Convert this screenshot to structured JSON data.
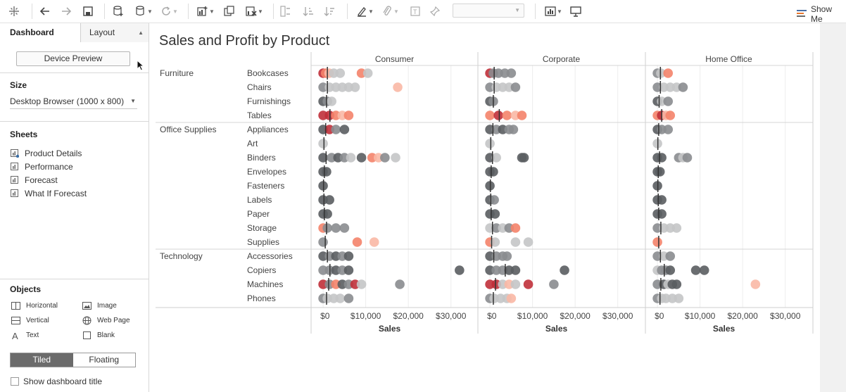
{
  "toolbar": {
    "items": [
      {
        "name": "tableau-logo-icon",
        "x": 20
      },
      {
        "name": "undo-icon",
        "x": 64
      },
      {
        "name": "redo-icon",
        "x": 94,
        "dim": true
      },
      {
        "name": "save-icon",
        "x": 125
      },
      {
        "name": "new-datasource-icon",
        "x": 168
      },
      {
        "name": "pause-updates-icon",
        "x": 200,
        "caret": true
      },
      {
        "name": "refresh-icon",
        "x": 236,
        "dim": true,
        "caret": true
      },
      {
        "name": "new-worksheet-icon",
        "x": 288,
        "caret": true
      },
      {
        "name": "duplicate-sheet-icon",
        "x": 326
      },
      {
        "name": "clear-sheet-icon",
        "x": 357,
        "caret": true
      },
      {
        "name": "swap-icon",
        "x": 406,
        "dim": true
      },
      {
        "name": "sort-ascending-icon",
        "x": 438,
        "dim": true
      },
      {
        "name": "sort-descending-icon",
        "x": 468,
        "dim": true
      },
      {
        "name": "highlight-icon",
        "x": 514,
        "caret": true
      },
      {
        "name": "group-icon",
        "x": 550,
        "dim": true,
        "caret": true
      },
      {
        "name": "label-icon",
        "x": 590,
        "dim": true
      },
      {
        "name": "pin-icon",
        "x": 618,
        "dim": true
      },
      {
        "name": "fit-icon",
        "x": 782,
        "caret": true
      },
      {
        "name": "presentation-icon",
        "x": 818
      }
    ],
    "show_me_label": "Show Me"
  },
  "left_pane": {
    "tabs": {
      "dashboard": "Dashboard",
      "layout": "Layout"
    },
    "device_preview_label": "Device Preview",
    "size_heading": "Size",
    "size_value": "Desktop Browser (1000 x 800)",
    "sheets_heading": "Sheets",
    "sheets": [
      {
        "label": "Product Details",
        "icon": "sheet-used-icon"
      },
      {
        "label": "Performance",
        "icon": "sheet-icon"
      },
      {
        "label": "Forecast",
        "icon": "sheet-icon"
      },
      {
        "label": "What If Forecast",
        "icon": "sheet-icon"
      }
    ],
    "objects_heading": "Objects",
    "objects": [
      {
        "label": "Horizontal",
        "icon": "horizontal-container-icon"
      },
      {
        "label": "Image",
        "icon": "image-icon"
      },
      {
        "label": "Vertical",
        "icon": "vertical-container-icon"
      },
      {
        "label": "Web Page",
        "icon": "web-page-icon"
      },
      {
        "label": "Text",
        "icon": "text-icon"
      },
      {
        "label": "Blank",
        "icon": "blank-icon"
      }
    ],
    "tiled_label": "Tiled",
    "floating_label": "Floating",
    "show_title_label": "Show dashboard title"
  },
  "viz": {
    "title": "Sales and Profit by Product",
    "colors": {
      "red": "#c0303a",
      "salmon": "#f4836a",
      "pink": "#f9b8a5",
      "dark": "#5a5d61",
      "mid": "#8a8c8f",
      "light": "#c4c5c6",
      "refline": "#333333"
    }
  },
  "chart_data": {
    "type": "scatter",
    "title": "Sales and Profit by Product",
    "xlabel": "Sales",
    "xlim": [
      -1500,
      35000
    ],
    "x_ticks": [
      "$0",
      "$10,000",
      "$20,000",
      "$30,000"
    ],
    "x_tick_values": [
      0,
      10000,
      20000,
      30000
    ],
    "segments": [
      "Consumer",
      "Corporate",
      "Home Office"
    ],
    "categories": [
      {
        "name": "Furniture",
        "subs": [
          "Bookcases",
          "Chairs",
          "Furnishings",
          "Tables"
        ]
      },
      {
        "name": "Office Supplies",
        "subs": [
          "Appliances",
          "Art",
          "Binders",
          "Envelopes",
          "Fasteners",
          "Labels",
          "Paper",
          "Storage",
          "Supplies"
        ]
      },
      {
        "name": "Technology",
        "subs": [
          "Accessories",
          "Copiers",
          "Machines",
          "Phones"
        ]
      }
    ],
    "reference_lines": {
      "Consumer": [
        1000,
        1000,
        800,
        1600,
        600,
        200,
        700,
        300,
        100,
        200,
        300,
        800,
        500,
        1000,
        1600,
        1300,
        800
      ],
      "Corporate": [
        1000,
        1000,
        800,
        2200,
        700,
        200,
        600,
        300,
        100,
        200,
        300,
        600,
        400,
        900,
        3600,
        1300,
        800
      ],
      "Home Office": [
        700,
        700,
        400,
        1000,
        300,
        100,
        500,
        200,
        100,
        200,
        300,
        800,
        300,
        700,
        1600,
        800,
        600
      ]
    },
    "points": {
      "Consumer": [
        [
          [
            0,
            "red"
          ],
          [
            600,
            "salmon"
          ],
          [
            1400,
            "pink"
          ],
          [
            2500,
            "light"
          ],
          [
            4000,
            "light"
          ],
          [
            9000,
            "salmon"
          ],
          [
            10500,
            "light"
          ]
        ],
        [
          [
            0,
            "mid"
          ],
          [
            1500,
            "light"
          ],
          [
            3000,
            "light"
          ],
          [
            4500,
            "light"
          ],
          [
            6000,
            "light"
          ],
          [
            7500,
            "light"
          ],
          [
            17500,
            "pink"
          ]
        ],
        [
          [
            0,
            "dark"
          ],
          [
            1000,
            "mid"
          ],
          [
            2000,
            "light"
          ]
        ],
        [
          [
            0,
            "red"
          ],
          [
            1500,
            "red"
          ],
          [
            3000,
            "salmon"
          ],
          [
            4500,
            "pink"
          ],
          [
            6000,
            "salmon"
          ]
        ],
        [
          [
            0,
            "dark"
          ],
          [
            1500,
            "red"
          ],
          [
            3000,
            "mid"
          ],
          [
            5000,
            "dark"
          ]
        ],
        [
          [
            0,
            "light"
          ]
        ],
        [
          [
            0,
            "dark"
          ],
          [
            2000,
            "mid"
          ],
          [
            3500,
            "dark"
          ],
          [
            5000,
            "mid"
          ],
          [
            6500,
            "light"
          ],
          [
            9000,
            "dark"
          ],
          [
            11500,
            "salmon"
          ],
          [
            13000,
            "pink"
          ],
          [
            14500,
            "mid"
          ],
          [
            17000,
            "light"
          ]
        ],
        [
          [
            0,
            "dark"
          ],
          [
            800,
            "dark"
          ]
        ],
        [
          [
            0,
            "dark"
          ]
        ],
        [
          [
            0,
            "dark"
          ],
          [
            1500,
            "dark"
          ]
        ],
        [
          [
            0,
            "dark"
          ],
          [
            1000,
            "dark"
          ]
        ],
        [
          [
            0,
            "salmon"
          ],
          [
            1000,
            "mid"
          ],
          [
            3000,
            "mid"
          ],
          [
            5000,
            "mid"
          ]
        ],
        [
          [
            0,
            "mid"
          ],
          [
            8000,
            "salmon"
          ],
          [
            12000,
            "pink"
          ]
        ],
        [
          [
            0,
            "dark"
          ],
          [
            1500,
            "mid"
          ],
          [
            3000,
            "dark"
          ],
          [
            4500,
            "mid"
          ],
          [
            6000,
            "dark"
          ]
        ],
        [
          [
            0,
            "mid"
          ],
          [
            1500,
            "mid"
          ],
          [
            3000,
            "dark"
          ],
          [
            4500,
            "mid"
          ],
          [
            6000,
            "dark"
          ],
          [
            32000,
            "dark"
          ]
        ],
        [
          [
            0,
            "red"
          ],
          [
            1500,
            "mid"
          ],
          [
            3000,
            "salmon"
          ],
          [
            4500,
            "dark"
          ],
          [
            6000,
            "mid"
          ],
          [
            7500,
            "red"
          ],
          [
            9000,
            "light"
          ],
          [
            18000,
            "mid"
          ]
        ],
        [
          [
            0,
            "mid"
          ],
          [
            1000,
            "light"
          ],
          [
            2500,
            "light"
          ],
          [
            4000,
            "light"
          ],
          [
            6000,
            "mid"
          ]
        ]
      ],
      "Corporate": [
        [
          [
            0,
            "red"
          ],
          [
            800,
            "mid"
          ],
          [
            2000,
            "mid"
          ],
          [
            3500,
            "mid"
          ],
          [
            5000,
            "mid"
          ]
        ],
        [
          [
            0,
            "mid"
          ],
          [
            1500,
            "light"
          ],
          [
            3000,
            "light"
          ],
          [
            4500,
            "light"
          ],
          [
            6000,
            "mid"
          ]
        ],
        [
          [
            0,
            "dark"
          ],
          [
            800,
            "mid"
          ]
        ],
        [
          [
            0,
            "salmon"
          ],
          [
            2000,
            "red"
          ],
          [
            4000,
            "salmon"
          ],
          [
            6000,
            "pink"
          ],
          [
            7500,
            "salmon"
          ]
        ],
        [
          [
            0,
            "dark"
          ],
          [
            1500,
            "mid"
          ],
          [
            3000,
            "dark"
          ],
          [
            4500,
            "mid"
          ],
          [
            5500,
            "mid"
          ]
        ],
        [
          [
            0,
            "light"
          ]
        ],
        [
          [
            0,
            "dark"
          ],
          [
            1500,
            "light"
          ],
          [
            7500,
            "dark"
          ],
          [
            8000,
            "dark"
          ]
        ],
        [
          [
            0,
            "dark"
          ],
          [
            800,
            "dark"
          ]
        ],
        [
          [
            0,
            "dark"
          ]
        ],
        [
          [
            0,
            "dark"
          ],
          [
            1000,
            "mid"
          ]
        ],
        [
          [
            0,
            "dark"
          ],
          [
            1200,
            "dark"
          ]
        ],
        [
          [
            0,
            "light"
          ],
          [
            1500,
            "mid"
          ],
          [
            3000,
            "light"
          ],
          [
            4500,
            "mid"
          ],
          [
            6000,
            "salmon"
          ]
        ],
        [
          [
            0,
            "salmon"
          ],
          [
            1200,
            "light"
          ],
          [
            6000,
            "light"
          ],
          [
            9000,
            "light"
          ]
        ],
        [
          [
            0,
            "dark"
          ],
          [
            1500,
            "mid"
          ],
          [
            3000,
            "mid"
          ],
          [
            4000,
            "mid"
          ]
        ],
        [
          [
            0,
            "dark"
          ],
          [
            1500,
            "mid"
          ],
          [
            3000,
            "mid"
          ],
          [
            4500,
            "dark"
          ],
          [
            6000,
            "dark"
          ],
          [
            17500,
            "dark"
          ]
        ],
        [
          [
            0,
            "red"
          ],
          [
            1500,
            "red"
          ],
          [
            3000,
            "light"
          ],
          [
            4500,
            "pink"
          ],
          [
            6000,
            "light"
          ],
          [
            9000,
            "red"
          ],
          [
            15000,
            "mid"
          ]
        ],
        [
          [
            0,
            "mid"
          ],
          [
            1000,
            "light"
          ],
          [
            2500,
            "light"
          ],
          [
            4000,
            "light"
          ],
          [
            5000,
            "pink"
          ]
        ]
      ],
      "Home Office": [
        [
          [
            0,
            "mid"
          ],
          [
            800,
            "light"
          ],
          [
            2500,
            "salmon"
          ]
        ],
        [
          [
            0,
            "mid"
          ],
          [
            1500,
            "light"
          ],
          [
            3000,
            "light"
          ],
          [
            4500,
            "light"
          ],
          [
            6000,
            "mid"
          ]
        ],
        [
          [
            0,
            "dark"
          ],
          [
            1000,
            "light"
          ],
          [
            2500,
            "mid"
          ]
        ],
        [
          [
            0,
            "salmon"
          ],
          [
            1000,
            "red"
          ],
          [
            2000,
            "pink"
          ],
          [
            3000,
            "salmon"
          ]
        ],
        [
          [
            0,
            "dark"
          ],
          [
            1000,
            "mid"
          ],
          [
            2500,
            "mid"
          ]
        ],
        [
          [
            0,
            "light"
          ]
        ],
        [
          [
            0,
            "dark"
          ],
          [
            1000,
            "dark"
          ],
          [
            5000,
            "mid"
          ],
          [
            6000,
            "light"
          ],
          [
            7000,
            "mid"
          ]
        ],
        [
          [
            0,
            "dark"
          ],
          [
            600,
            "dark"
          ]
        ],
        [
          [
            0,
            "dark"
          ]
        ],
        [
          [
            0,
            "dark"
          ],
          [
            1000,
            "dark"
          ]
        ],
        [
          [
            0,
            "dark"
          ],
          [
            1000,
            "dark"
          ]
        ],
        [
          [
            0,
            "mid"
          ],
          [
            1500,
            "light"
          ],
          [
            3000,
            "light"
          ],
          [
            4500,
            "light"
          ]
        ],
        [
          [
            0,
            "salmon"
          ]
        ],
        [
          [
            0,
            "mid"
          ],
          [
            1500,
            "light"
          ],
          [
            3000,
            "mid"
          ]
        ],
        [
          [
            0,
            "light"
          ],
          [
            1000,
            "mid"
          ],
          [
            2000,
            "mid"
          ],
          [
            3000,
            "dark"
          ],
          [
            9000,
            "dark"
          ],
          [
            11000,
            "dark"
          ]
        ],
        [
          [
            0,
            "mid"
          ],
          [
            1500,
            "dark"
          ],
          [
            2500,
            "light"
          ],
          [
            3500,
            "dark"
          ],
          [
            4500,
            "dark"
          ],
          [
            23000,
            "pink"
          ]
        ],
        [
          [
            0,
            "mid"
          ],
          [
            1000,
            "light"
          ],
          [
            2000,
            "light"
          ],
          [
            3500,
            "light"
          ],
          [
            5000,
            "light"
          ]
        ]
      ]
    }
  }
}
